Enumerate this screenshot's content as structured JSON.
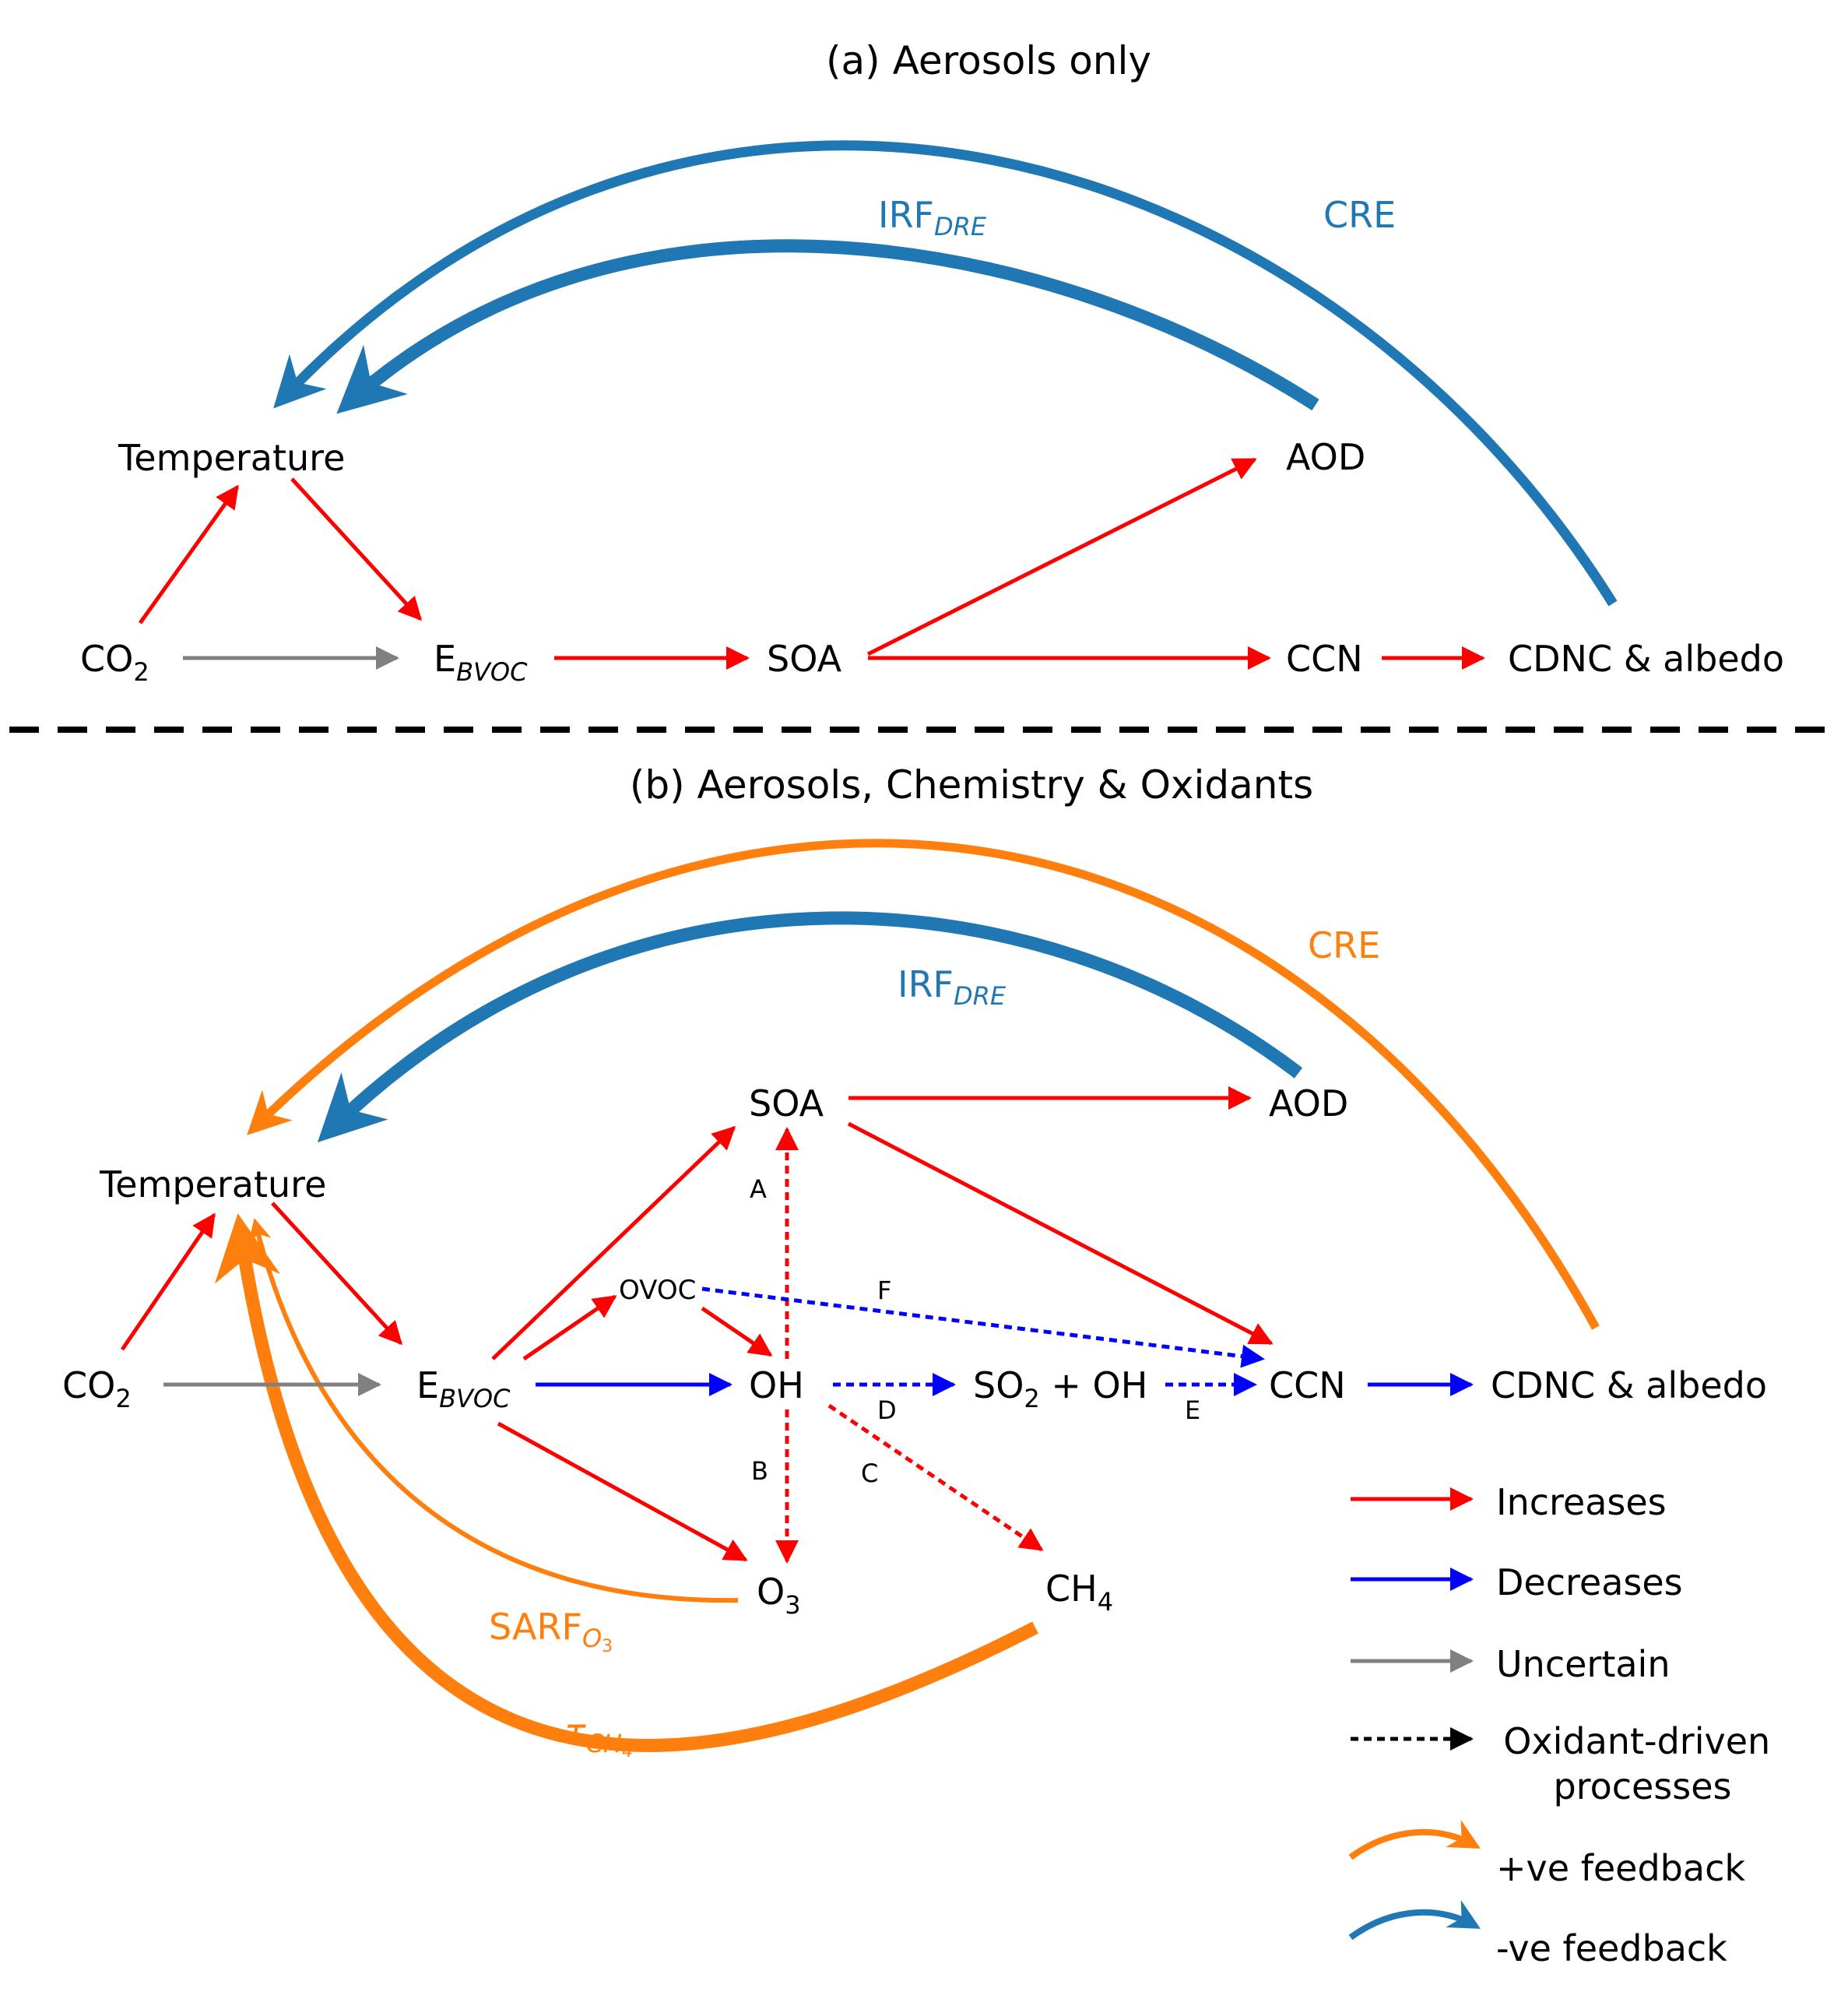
{
  "colors": {
    "increase": "#ff0000",
    "decrease": "#0000ff",
    "uncertain": "#808080",
    "oxidant": "#000000",
    "positive_feedback": "#ff7f0e",
    "negative_feedback": "#1f77b4"
  },
  "panel_a": {
    "title": "(a) Aerosols only",
    "nodes": {
      "temperature": "Temperature",
      "co2_main": "CO",
      "co2_sub": "2",
      "ebvoc_main": "E",
      "ebvoc_sub": "BVOC",
      "soa": "SOA",
      "aod": "AOD",
      "ccn": "CCN",
      "cdnc": "CDNC & albedo"
    },
    "feedbacks": {
      "irf_main": "IRF",
      "irf_sub": "DRE",
      "cre": "CRE"
    }
  },
  "panel_b": {
    "title": "(b) Aerosols, Chemistry & Oxidants",
    "nodes": {
      "temperature": "Temperature",
      "co2_main": "CO",
      "co2_sub": "2",
      "ebvoc_main": "E",
      "ebvoc_sub": "BVOC",
      "soa": "SOA",
      "aod": "AOD",
      "ovoc": "OVOC",
      "oh": "OH",
      "so2_main": "SO",
      "so2_sub": "2",
      "so2_rest": " + OH",
      "ccn": "CCN",
      "cdnc": "CDNC & albedo",
      "o3_main": "O",
      "o3_sub": "3",
      "ch4_main": "CH",
      "ch4_sub": "4"
    },
    "process_letters": {
      "a": "A",
      "b": "B",
      "c": "C",
      "d": "D",
      "e": "E",
      "f": "F"
    },
    "feedbacks": {
      "irf_main": "IRF",
      "irf_sub": "DRE",
      "cre": "CRE",
      "sarf_main": "SARF",
      "sarf_sub": "O",
      "sarf_subsub": "3",
      "tau_main": "τ",
      "tau_sub": "CH",
      "tau_subsub": "4"
    }
  },
  "legend": {
    "increases": "Increases",
    "decreases": "Decreases",
    "uncertain": "Uncertain",
    "oxidant_line1": "Oxidant-driven",
    "oxidant_line2": "processes",
    "positive": "+ve feedback",
    "negative": "-ve feedback"
  }
}
